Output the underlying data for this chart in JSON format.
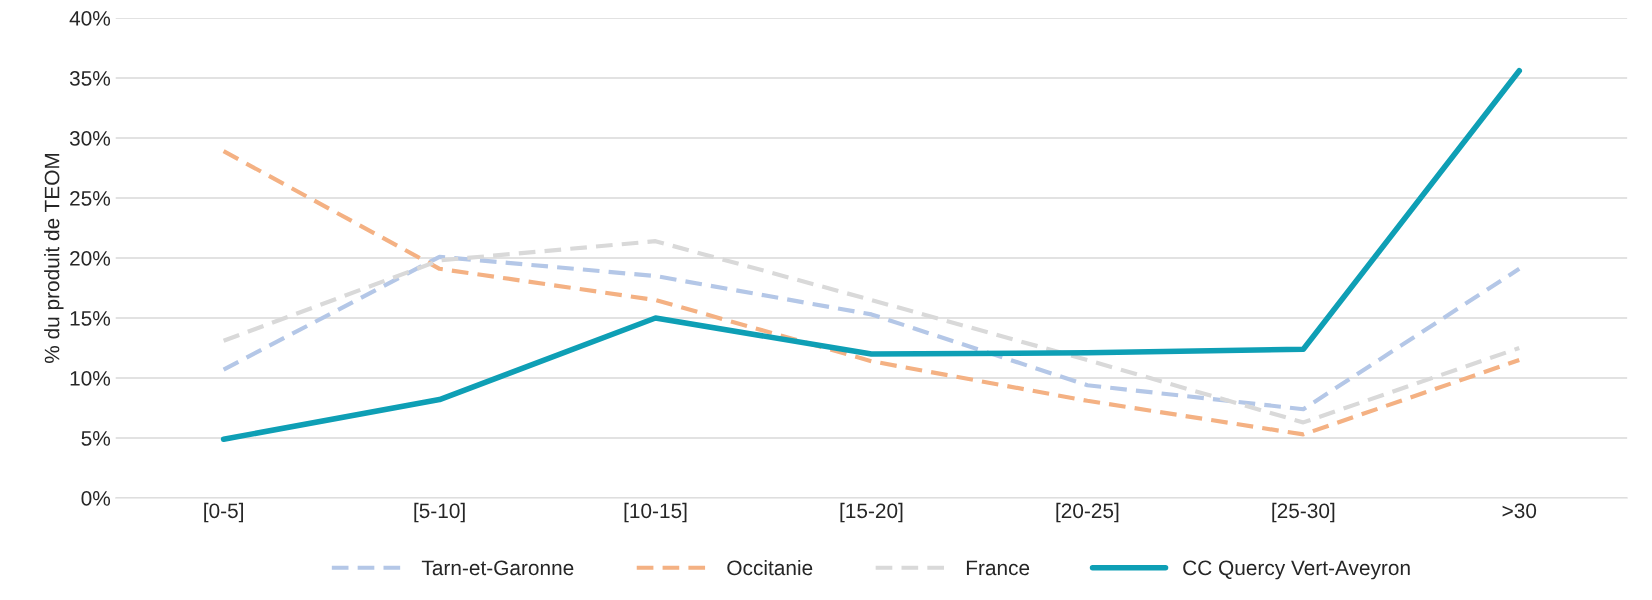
{
  "chart_data": {
    "type": "line",
    "ylabel": "% du produit de TEOM",
    "categories": [
      "[0-5]",
      "[5-10]",
      "[10-15]",
      "[15-20]",
      "[20-25]",
      "[25-30]",
      ">30"
    ],
    "series": [
      {
        "name": "Tarn-et-Garonne",
        "color": "#b4c7e7",
        "line_style": "dashed",
        "values": [
          10.7,
          20.1,
          18.5,
          15.3,
          9.4,
          7.4,
          19.1
        ]
      },
      {
        "name": "Occitanie",
        "color": "#f4b183",
        "line_style": "dashed",
        "values": [
          28.9,
          19.1,
          16.5,
          11.4,
          8.1,
          5.3,
          11.5
        ]
      },
      {
        "name": "France",
        "color": "#d9d9d9",
        "line_style": "dashed",
        "values": [
          13.1,
          19.8,
          21.4,
          16.5,
          11.5,
          6.3,
          12.5
        ]
      },
      {
        "name": "CC Quercy Vert-Aveyron",
        "color": "#0e9fb5",
        "line_style": "solid",
        "values": [
          4.9,
          8.2,
          15.0,
          12.0,
          12.1,
          12.4,
          35.6
        ]
      }
    ],
    "ylim": [
      0,
      40
    ],
    "yticks": [
      {
        "value": 0,
        "label": "0%"
      },
      {
        "value": 5,
        "label": "5%"
      },
      {
        "value": 10,
        "label": "10%"
      },
      {
        "value": 15,
        "label": "15%"
      },
      {
        "value": 20,
        "label": "20%"
      },
      {
        "value": 25,
        "label": "25%"
      },
      {
        "value": 30,
        "label": "30%"
      },
      {
        "value": 35,
        "label": "35%"
      },
      {
        "value": 40,
        "label": "40%"
      }
    ],
    "grid": "y",
    "legend": "bottom",
    "marker": "none"
  }
}
